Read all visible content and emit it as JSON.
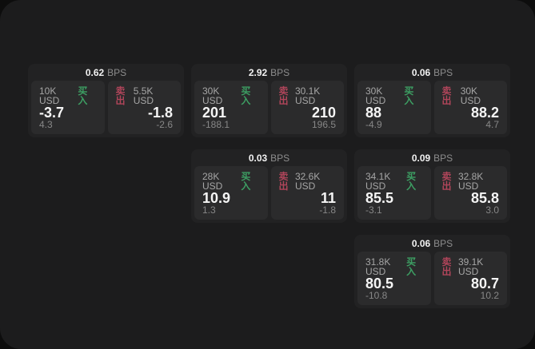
{
  "theme": {
    "backdrop": "#0d0d0d",
    "window_bg": "#1c1c1d",
    "card_bg": "#222223",
    "panel_bg": "#2b2b2c",
    "green": "#3d9f63",
    "red": "#b0455a",
    "text_primary": "#f5f5f5",
    "text_secondary": "#a6a6a6",
    "text_muted": "#878787"
  },
  "labels": {
    "bps_unit": "BPS",
    "buy": "买入",
    "sell": "卖出"
  },
  "cards": [
    {
      "bps": "0.62",
      "buy": {
        "amount": "10K USD",
        "price": "-3.7",
        "delta": "4.3"
      },
      "sell": {
        "amount": "5.5K USD",
        "price": "-1.8",
        "delta": "-2.6"
      }
    },
    {
      "bps": "2.92",
      "buy": {
        "amount": "30K USD",
        "price": "201",
        "delta": "-188.1"
      },
      "sell": {
        "amount": "30.1K USD",
        "price": "210",
        "delta": "196.5"
      }
    },
    {
      "bps": "0.06",
      "buy": {
        "amount": "30K USD",
        "price": "88",
        "delta": "-4.9"
      },
      "sell": {
        "amount": "30K USD",
        "price": "88.2",
        "delta": "4.7"
      }
    },
    {
      "bps": "0.03",
      "buy": {
        "amount": "28K USD",
        "price": "10.9",
        "delta": "1.3"
      },
      "sell": {
        "amount": "32.6K USD",
        "price": "11",
        "delta": "-1.8"
      }
    },
    {
      "bps": "0.09",
      "buy": {
        "amount": "34.1K USD",
        "price": "85.5",
        "delta": "-3.1"
      },
      "sell": {
        "amount": "32.8K USD",
        "price": "85.8",
        "delta": "3.0"
      }
    },
    {
      "bps": "0.06",
      "buy": {
        "amount": "31.8K USD",
        "price": "80.5",
        "delta": "-10.8"
      },
      "sell": {
        "amount": "39.1K USD",
        "price": "80.7",
        "delta": "10.2"
      }
    }
  ]
}
